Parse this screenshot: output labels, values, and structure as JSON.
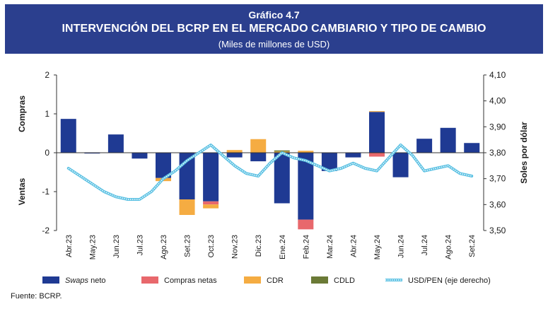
{
  "header": {
    "label": "Gráfico 4.7",
    "title": "INTERVENCIÓN DEL BCRP EN EL MERCADO CAMBIARIO Y TIPO DE CAMBIO",
    "subtitle": "(Miles de millones de USD)"
  },
  "source": "Fuente: BCRP.",
  "colors": {
    "header_bg": "#2b3f8e",
    "swaps": "#1f3a93",
    "compras": "#e8686c",
    "cdr": "#f5ac42",
    "cdld": "#6b7a36",
    "usdpen": "#5bc1e3"
  },
  "chart_data": {
    "type": "bar",
    "categories": [
      "Abr.23",
      "May.23",
      "Jun.23",
      "Jul.23",
      "Ago.23",
      "Set.23",
      "Oct.23",
      "Nov.23",
      "Dic.23",
      "Ene.24",
      "Feb.24",
      "Mar.24",
      "Abr.24",
      "May.24",
      "Jun.24",
      "Jul.24",
      "Ago.24",
      "Set.24"
    ],
    "ylim": [
      -2,
      2
    ],
    "yticks": [
      "2",
      "1",
      "0",
      "-1",
      "-2"
    ],
    "y2lim": [
      3.5,
      4.1
    ],
    "y2ticks": [
      "4,10",
      "4,00",
      "3,90",
      "3,80",
      "3,70",
      "3,60",
      "3,50"
    ],
    "y_upper_label": "Compras",
    "y_lower_label": "Ventas",
    "y2label": "Soles por dólar",
    "stacked": true,
    "series": [
      {
        "name": "Swaps neto",
        "italic_word": "Swaps",
        "rest": " neto",
        "color": "#1f3a93",
        "values": [
          0.87,
          -0.02,
          0.47,
          -0.15,
          -0.65,
          -1.2,
          -1.25,
          -0.12,
          -0.22,
          -1.3,
          -1.72,
          -0.47,
          -0.12,
          1.05,
          -0.63,
          0.36,
          0.64,
          0.25
        ]
      },
      {
        "name": "Compras netas",
        "color": "#e8686c",
        "values": [
          0,
          0,
          0,
          0,
          0,
          0,
          -0.08,
          0,
          0,
          0,
          -0.25,
          0,
          0,
          -0.1,
          0,
          0,
          0,
          0
        ]
      },
      {
        "name": "CDR",
        "color": "#f5ac42",
        "values": [
          0,
          0,
          0,
          0,
          -0.08,
          -0.4,
          -0.1,
          0.07,
          0.35,
          0.03,
          0.05,
          0,
          0,
          0.02,
          0,
          0,
          0,
          0
        ]
      },
      {
        "name": "CDLD",
        "color": "#6b7a36",
        "values": [
          0,
          0,
          0,
          0,
          0,
          0,
          0,
          0,
          0,
          0.03,
          0,
          0,
          0,
          0,
          0,
          0,
          0,
          0
        ]
      }
    ],
    "line": {
      "name": "USD/PEN (eje derecho)",
      "axis": "right",
      "color": "#5bc1e3",
      "x": [
        0,
        0.5,
        1,
        1.5,
        2,
        2.5,
        3,
        3.5,
        4,
        4.5,
        5,
        5.5,
        6,
        6.5,
        7,
        7.5,
        8,
        8.5,
        9,
        9.5,
        10,
        10.5,
        11,
        11.5,
        12,
        12.5,
        13,
        13.5,
        14,
        14.5,
        15,
        15.5,
        16,
        16.5,
        17
      ],
      "values": [
        3.74,
        3.71,
        3.68,
        3.65,
        3.63,
        3.62,
        3.62,
        3.65,
        3.7,
        3.73,
        3.77,
        3.8,
        3.83,
        3.79,
        3.75,
        3.72,
        3.71,
        3.76,
        3.8,
        3.78,
        3.77,
        3.75,
        3.73,
        3.74,
        3.76,
        3.74,
        3.73,
        3.78,
        3.83,
        3.79,
        3.73,
        3.74,
        3.75,
        3.72,
        3.71
      ]
    },
    "legend_position": "bottom"
  }
}
